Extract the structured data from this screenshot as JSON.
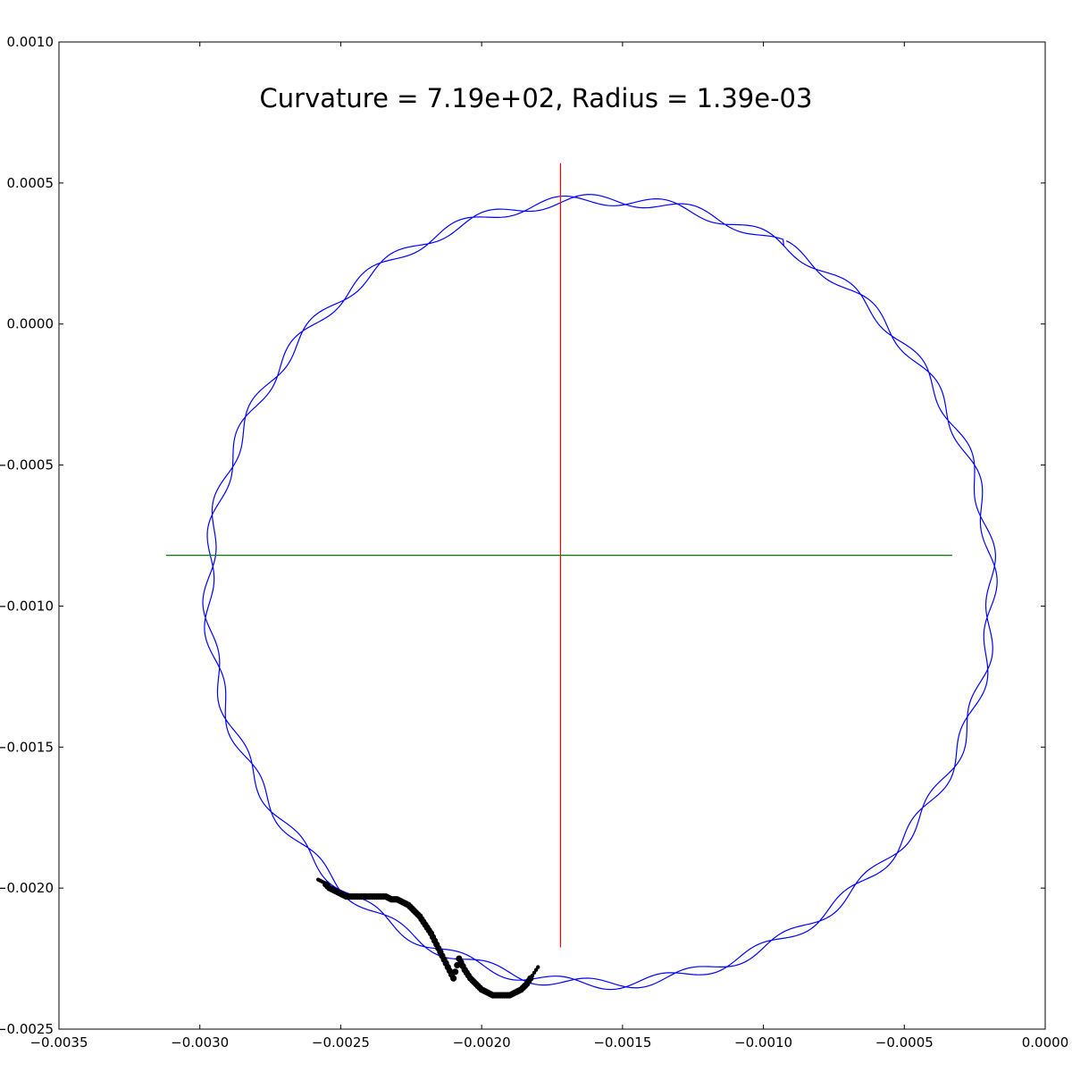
{
  "chart_data": {
    "type": "scatter",
    "title": "Curvature = 7.19e+02, Radius = 1.39e-03",
    "xlabel": "",
    "ylabel": "",
    "xlim": [
      -0.0035,
      0.0
    ],
    "ylim": [
      -0.0025,
      0.001
    ],
    "grid": false,
    "x_ticks": [
      "−0.0035",
      "−0.0030",
      "−0.0025",
      "−0.0020",
      "−0.0015",
      "−0.0010",
      "−0.0005",
      "0.0000"
    ],
    "x_tick_values": [
      -0.0035,
      -0.003,
      -0.0025,
      -0.002,
      -0.0015,
      -0.001,
      -0.0005,
      0.0
    ],
    "y_ticks": [
      "0.0010",
      "0.0005",
      "0.0000",
      "−0.0005",
      "−0.0010",
      "−0.0015",
      "−0.0020",
      "−0.0025"
    ],
    "y_tick_values": [
      0.001,
      0.0005,
      0.0,
      -0.0005,
      -0.001,
      -0.0015,
      -0.002,
      -0.0025
    ],
    "circle_trace": {
      "color": "#0000ff",
      "center": [
        -0.00158,
        -0.00095
      ],
      "radius": 0.00139,
      "start_point": [
        -0.0009,
        0.00033
      ],
      "turns": 2.0,
      "wobble_amplitude": 2e-05,
      "wobble_cycles_per_turn": 24
    },
    "vertical_line": {
      "color": "#ff0000",
      "x": -0.00172,
      "y_range": [
        -0.00221,
        0.00057
      ]
    },
    "horizontal_line": {
      "color": "#008000",
      "y": -0.00082,
      "x_range": [
        -0.00312,
        -0.00033
      ]
    },
    "points": {
      "color": "#000000",
      "x": [
        -0.00258,
        -0.00256,
        -0.00254,
        -0.00252,
        -0.0025,
        -0.00248,
        -0.00246,
        -0.00244,
        -0.00242,
        -0.0024,
        -0.00238,
        -0.00236,
        -0.00234,
        -0.00232,
        -0.0023,
        -0.00228,
        -0.00226,
        -0.00224,
        -0.00222,
        -0.0022,
        -0.00218,
        -0.00216,
        -0.00214,
        -0.00212,
        -0.0021,
        -0.00208,
        -0.00206,
        -0.00204,
        -0.00202,
        -0.002,
        -0.00198,
        -0.00196,
        -0.00194,
        -0.00192,
        -0.0019,
        -0.00188,
        -0.00186,
        -0.00184,
        -0.00182,
        -0.0018
      ],
      "y": [
        -0.00197,
        -0.00198,
        -0.002,
        -0.00201,
        -0.00202,
        -0.00203,
        -0.00203,
        -0.00203,
        -0.00203,
        -0.00203,
        -0.00203,
        -0.00203,
        -0.00203,
        -0.00204,
        -0.00204,
        -0.00205,
        -0.00206,
        -0.00208,
        -0.0021,
        -0.00213,
        -0.00216,
        -0.0022,
        -0.00224,
        -0.00228,
        -0.00232,
        -0.00225,
        -0.00229,
        -0.00232,
        -0.00234,
        -0.00236,
        -0.00237,
        -0.00238,
        -0.00238,
        -0.00238,
        -0.00238,
        -0.00237,
        -0.00236,
        -0.00234,
        -0.00231,
        -0.00228
      ]
    }
  }
}
